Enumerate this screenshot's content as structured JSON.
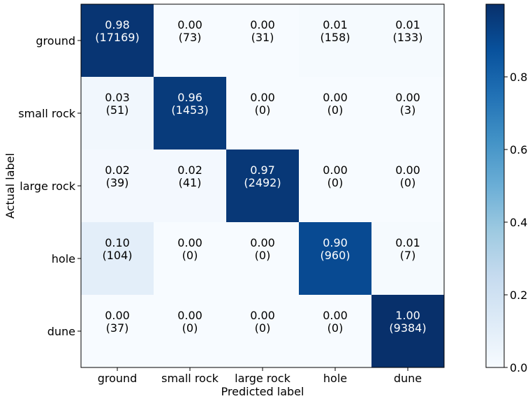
{
  "chart_data": {
    "type": "heatmap",
    "title": "",
    "xlabel": "Predicted label",
    "ylabel": "Actual label",
    "categories_x": [
      "ground",
      "small rock",
      "large rock",
      "hole",
      "dune"
    ],
    "categories_y": [
      "ground",
      "small rock",
      "large rock",
      "hole",
      "dune"
    ],
    "values": [
      [
        0.98,
        0.0,
        0.0,
        0.01,
        0.01
      ],
      [
        0.03,
        0.96,
        0.0,
        0.0,
        0.0
      ],
      [
        0.02,
        0.02,
        0.97,
        0.0,
        0.0
      ],
      [
        0.1,
        0.0,
        0.0,
        0.9,
        0.01
      ],
      [
        0.0,
        0.0,
        0.0,
        0.0,
        1.0
      ]
    ],
    "value_labels": [
      [
        "0.98",
        "0.00",
        "0.00",
        "0.01",
        "0.01"
      ],
      [
        "0.03",
        "0.96",
        "0.00",
        "0.00",
        "0.00"
      ],
      [
        "0.02",
        "0.02",
        "0.97",
        "0.00",
        "0.00"
      ],
      [
        "0.10",
        "0.00",
        "0.00",
        "0.90",
        "0.01"
      ],
      [
        "0.00",
        "0.00",
        "0.00",
        "0.00",
        "1.00"
      ]
    ],
    "counts": [
      [
        "(17169)",
        "(73)",
        "(31)",
        "(158)",
        "(133)"
      ],
      [
        "(51)",
        "(1453)",
        "(0)",
        "(0)",
        "(3)"
      ],
      [
        "(39)",
        "(41)",
        "(2492)",
        "(0)",
        "(0)"
      ],
      [
        "(104)",
        "(0)",
        "(0)",
        "(960)",
        "(7)"
      ],
      [
        "(37)",
        "(0)",
        "(0)",
        "(0)",
        "(9384)"
      ]
    ],
    "colorbar": {
      "range": [
        0.0,
        1.0
      ],
      "ticks": [
        0.0,
        0.2,
        0.4,
        0.6,
        0.8
      ],
      "tick_labels": [
        "0.0",
        "0.2",
        "0.4",
        "0.6",
        "0.8"
      ],
      "colormap": "Blues"
    },
    "grid": false
  }
}
